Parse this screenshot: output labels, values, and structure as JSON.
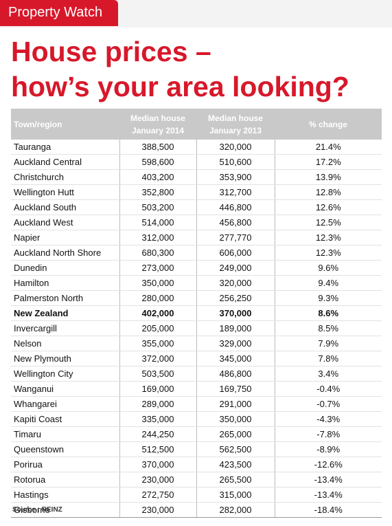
{
  "header": {
    "tag": "Property Watch",
    "title": [
      "House prices –",
      "how’s your area looking?"
    ]
  },
  "table": {
    "columns": [
      [
        "Town/region"
      ],
      [
        "Median house",
        "January 2014"
      ],
      [
        "Median house",
        "January 2013"
      ],
      [
        "% change"
      ]
    ],
    "rows": [
      [
        "Tauranga",
        "388,500",
        "320,000",
        "21.4%"
      ],
      [
        "Auckland Central",
        "598,600",
        "510,600",
        "17.2%"
      ],
      [
        "Christchurch",
        "403,200",
        "353,900",
        "13.9%"
      ],
      [
        "Wellington Hutt",
        "352,800",
        "312,700",
        "12.8%"
      ],
      [
        "Auckland South",
        "503,200",
        "446,800",
        "12.6%"
      ],
      [
        "Auckland West",
        "514,000",
        "456,800",
        "12.5%"
      ],
      [
        "Napier",
        "312,000",
        "277,770",
        "12.3%"
      ],
      [
        "Auckland North Shore",
        "680,300",
        "606,000",
        "12.3%"
      ],
      [
        "Dunedin",
        "273,000",
        "249,000",
        "9.6%"
      ],
      [
        "Hamilton",
        "350,000",
        "320,000",
        "9.4%"
      ],
      [
        "Palmerston North",
        "280,000",
        "256,250",
        "9.3%"
      ],
      [
        "New Zealand",
        "402,000",
        "370,000",
        "8.6%"
      ],
      [
        "Invercargill",
        "205,000",
        "189,000",
        "8.5%"
      ],
      [
        "Nelson",
        "355,000",
        "329,000",
        "7.9%"
      ],
      [
        "New Plymouth",
        "372,000",
        "345,000",
        "7.8%"
      ],
      [
        "Wellington City",
        "503,500",
        "486,800",
        "3.4%"
      ],
      [
        "Wanganui",
        "169,000",
        "169,750",
        "-0.4%"
      ],
      [
        "Whangarei",
        "289,000",
        "291,000",
        "-0.7%"
      ],
      [
        "Kapiti Coast",
        "335,000",
        "350,000",
        "-4.3%"
      ],
      [
        "Timaru",
        "244,250",
        "265,000",
        "-7.8%"
      ],
      [
        "Queenstown",
        "512,500",
        "562,500",
        "-8.9%"
      ],
      [
        "Porirua",
        "370,000",
        "423,500",
        "-12.6%"
      ],
      [
        "Rotorua",
        "230,000",
        "265,500",
        "-13.4%"
      ],
      [
        "Hastings",
        "272,750",
        "315,000",
        "-13.4%"
      ],
      [
        "Gisborne",
        "230,000",
        "282,000",
        "-18.4%"
      ]
    ]
  },
  "source": "Source : REINZ"
}
